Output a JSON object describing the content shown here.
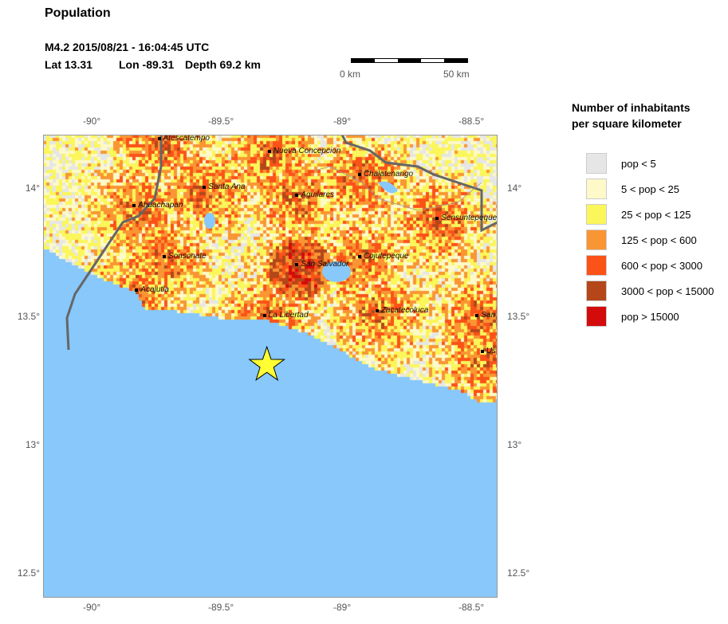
{
  "title": "Population",
  "event": {
    "line1": "M4.2  2015/08/21 - 16:04:45 UTC",
    "lat": "Lat 13.31",
    "lon": "Lon -89.31",
    "depth": "Depth  69.2 km"
  },
  "scalebar": {
    "left": "0 km",
    "right": "50 km"
  },
  "lon_ticks": [
    "-90°",
    "-89.5°",
    "-89°",
    "-88.5°"
  ],
  "lat_ticks": [
    "14°",
    "13.5°",
    "13°",
    "12.5°"
  ],
  "cities": [
    {
      "name": "Atescatempo",
      "lon": -89.74,
      "lat": 14.18
    },
    {
      "name": "Nueva Concepcion",
      "lon": -89.3,
      "lat": 14.13
    },
    {
      "name": "Santa Ana",
      "lon": -89.56,
      "lat": 13.99
    },
    {
      "name": "Aguilares",
      "lon": -89.19,
      "lat": 13.96
    },
    {
      "name": "Chalatenango",
      "lon": -88.94,
      "lat": 14.04
    },
    {
      "name": "Ahuachapan",
      "lon": -89.84,
      "lat": 13.92
    },
    {
      "name": "Sensuntepeque",
      "lon": -88.63,
      "lat": 13.87
    },
    {
      "name": "Sonsonate",
      "lon": -89.72,
      "lat": 13.72
    },
    {
      "name": "San Salvador",
      "lon": -89.19,
      "lat": 13.69
    },
    {
      "name": "Cojutepeque",
      "lon": -88.94,
      "lat": 13.72
    },
    {
      "name": "Acajutla",
      "lon": -89.83,
      "lat": 13.59
    },
    {
      "name": "La Libertad",
      "lon": -89.32,
      "lat": 13.49
    },
    {
      "name": "Zacatecoluca",
      "lon": -88.87,
      "lat": 13.51
    },
    {
      "name": "San",
      "lon": -88.47,
      "lat": 13.49
    },
    {
      "name": "Us",
      "lon": -88.45,
      "lat": 13.35
    }
  ],
  "epicenter": {
    "lat": 13.31,
    "lon": -89.31,
    "marker": "star-icon",
    "color": "#ffff33"
  },
  "legend": {
    "title1": "Number of inhabitants",
    "title2": "per square kilometer",
    "items": [
      {
        "label": "pop < 5",
        "color": "#e6e6e6"
      },
      {
        "label": "5 < pop < 25",
        "color": "#fdf9c8"
      },
      {
        "label": "25 < pop < 125",
        "color": "#fbf65a"
      },
      {
        "label": "125 < pop < 600",
        "color": "#f99633"
      },
      {
        "label": "600 < pop < 3000",
        "color": "#fb5218"
      },
      {
        "label": "3000 < pop < 15000",
        "color": "#b4461a"
      },
      {
        "label": "pop > 15000",
        "color": "#d40b0b"
      }
    ]
  },
  "colors": {
    "water": "#88c8fa",
    "border": "#666666"
  }
}
